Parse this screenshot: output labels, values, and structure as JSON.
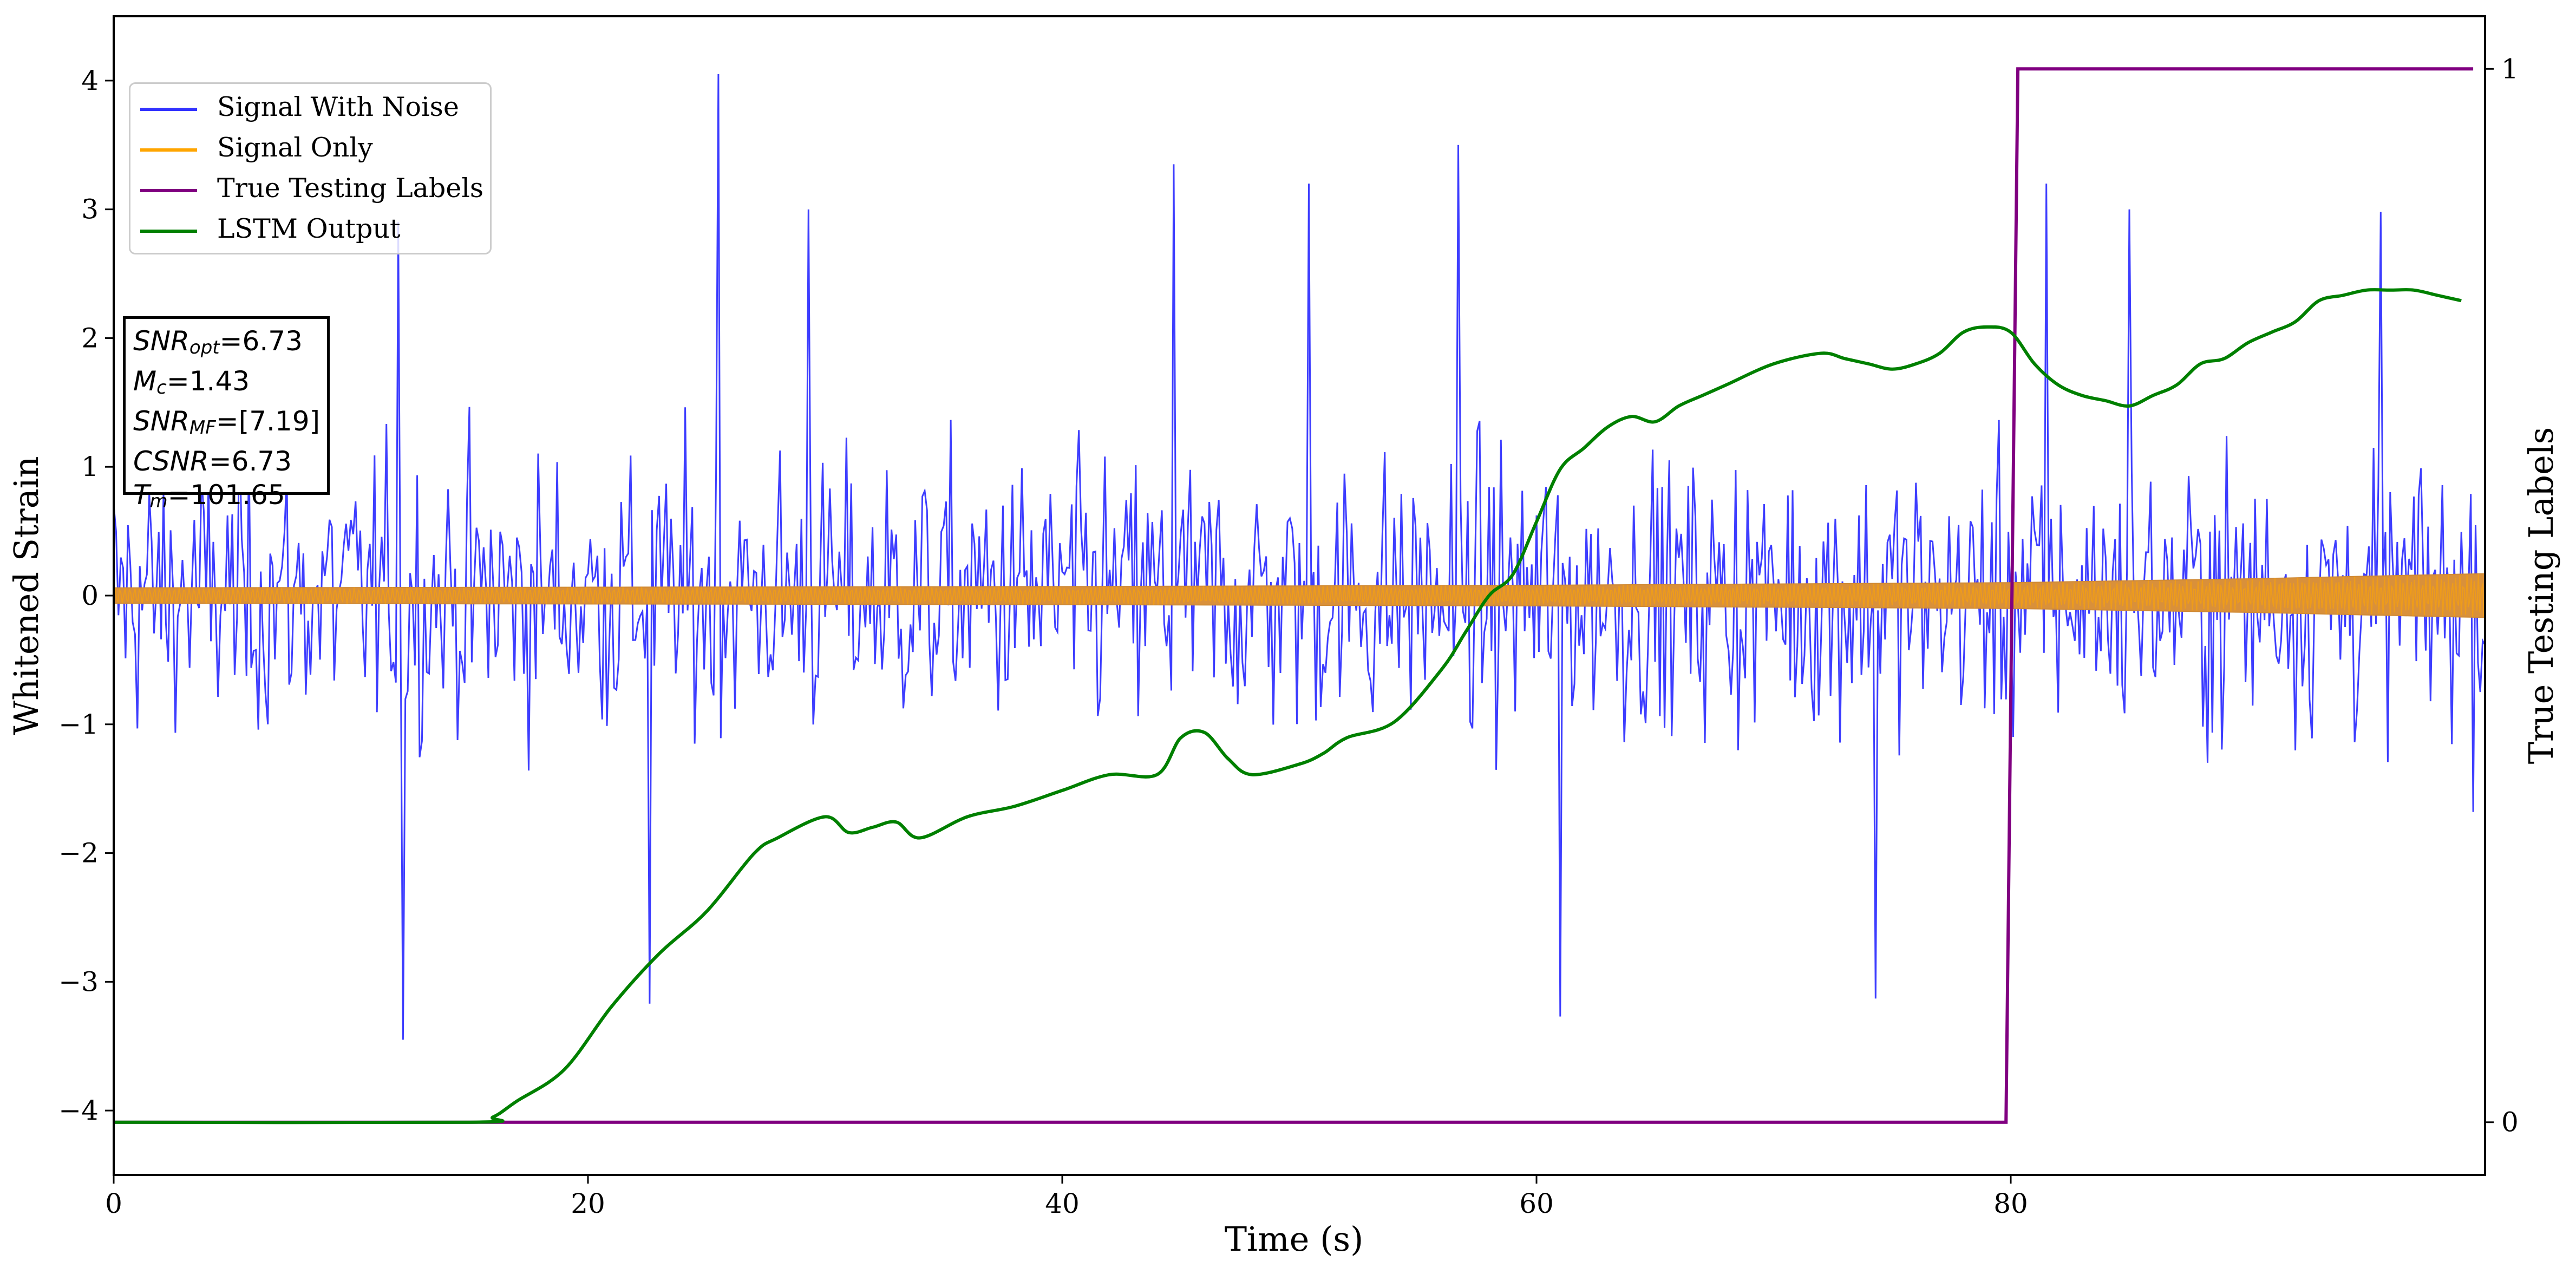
{
  "chart_data": {
    "type": "line",
    "xlabel": "Time (s)",
    "ylabel": "Whitened Strain",
    "y2label": "True Testing Labels",
    "xlim": [
      0,
      100
    ],
    "ylim": [
      -4.5,
      4.5
    ],
    "y2lim": [
      -0.05,
      1.05
    ],
    "xticks": [
      0,
      20,
      40,
      60,
      80
    ],
    "yticks": [
      -4,
      -3,
      -2,
      -1,
      0,
      1,
      2,
      3,
      4
    ],
    "yticklabels": [
      "−4",
      "−3",
      "−2",
      "−1",
      "0",
      "1",
      "2",
      "3",
      "4"
    ],
    "y2ticks": [
      0,
      1
    ],
    "legend_position": "upper-left",
    "series": [
      {
        "name": "Signal With Noise",
        "color": "#3333ff",
        "axis": "left",
        "sample_interval": 0.1,
        "typical_range": [
          -2.2,
          2.6
        ],
        "notable_peaks": [
          [
            12.0,
            2.9
          ],
          [
            25.5,
            4.05
          ],
          [
            29.3,
            3.0
          ],
          [
            44.7,
            3.35
          ],
          [
            50.4,
            3.2
          ],
          [
            56.7,
            3.5
          ],
          [
            81.5,
            3.2
          ],
          [
            85.0,
            3.0
          ],
          [
            95.6,
            2.98
          ],
          [
            12.2,
            -3.45
          ],
          [
            22.6,
            -3.17
          ],
          [
            61.0,
            -3.27
          ],
          [
            74.3,
            -3.13
          ]
        ]
      },
      {
        "name": "Signal Only",
        "color": "#ffa500",
        "axis": "left",
        "amplitude_envelope": {
          "x": [
            0,
            40,
            60,
            80,
            90,
            100
          ],
          "y": [
            0.06,
            0.07,
            0.08,
            0.1,
            0.13,
            0.17
          ]
        }
      },
      {
        "name": "True Testing Labels",
        "color": "#800080",
        "axis": "right",
        "x": [
          0,
          79.8,
          80.3,
          99.5
        ],
        "y": [
          0,
          0,
          1,
          1
        ]
      },
      {
        "name": "LSTM Output",
        "color": "#008000",
        "axis": "right",
        "x": [
          0,
          15,
          16,
          17,
          19,
          21,
          23,
          25,
          27,
          28,
          30,
          31,
          32,
          33,
          34,
          36,
          38,
          40,
          42,
          44,
          45,
          46,
          47,
          48,
          50,
          51,
          52,
          54,
          56,
          57,
          58,
          59,
          60,
          61,
          62,
          63,
          64,
          65,
          66,
          67,
          68,
          70,
          72,
          73,
          74,
          75,
          76,
          77,
          78,
          79,
          80,
          81,
          82,
          83,
          84,
          85,
          86,
          87,
          88,
          89,
          90,
          91,
          92,
          93,
          94,
          95,
          96,
          97,
          98,
          99
        ],
        "y": [
          0,
          0,
          0.005,
          0.02,
          0.05,
          0.11,
          0.16,
          0.2,
          0.255,
          0.27,
          0.29,
          0.275,
          0.28,
          0.285,
          0.27,
          0.29,
          0.3,
          0.315,
          0.33,
          0.33,
          0.365,
          0.37,
          0.345,
          0.33,
          0.34,
          0.35,
          0.365,
          0.38,
          0.43,
          0.465,
          0.5,
          0.52,
          0.57,
          0.62,
          0.64,
          0.66,
          0.67,
          0.665,
          0.68,
          0.69,
          0.7,
          0.72,
          0.73,
          0.725,
          0.72,
          0.715,
          0.72,
          0.73,
          0.75,
          0.755,
          0.75,
          0.72,
          0.7,
          0.69,
          0.685,
          0.68,
          0.69,
          0.7,
          0.72,
          0.725,
          0.74,
          0.75,
          0.76,
          0.78,
          0.785,
          0.79,
          0.79,
          0.79,
          0.785,
          0.78
        ]
      }
    ]
  },
  "legend": {
    "items": [
      {
        "label": "Signal With Noise",
        "color": "#3333ff"
      },
      {
        "label": "Signal Only",
        "color": "#ffa500"
      },
      {
        "label": "True Testing Labels",
        "color": "#800080"
      },
      {
        "label": "LSTM Output",
        "color": "#008000"
      }
    ]
  },
  "annotation": {
    "snr_opt_base": "SNR",
    "snr_opt_sub": "opt",
    "snr_opt_value": "=6.73",
    "mc_base": "M",
    "mc_sub": "c",
    "mc_value": "=1.43",
    "snr_mf_base": "SNR",
    "snr_mf_sub": "MF",
    "snr_mf_value": "=[7.19]",
    "csnr_base": "CSNR",
    "csnr_value": "=6.73",
    "tm_base": "T",
    "tm_sub": "m",
    "tm_value": "=101.65"
  }
}
